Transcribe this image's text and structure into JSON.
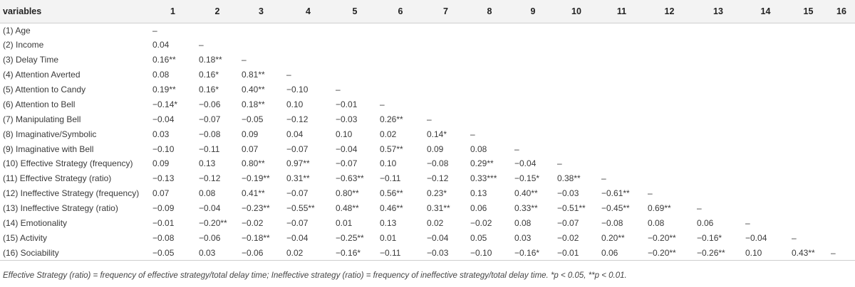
{
  "table": {
    "header": [
      "variables",
      "1",
      "2",
      "3",
      "4",
      "5",
      "6",
      "7",
      "8",
      "9",
      "10",
      "11",
      "12",
      "13",
      "14",
      "15",
      "16"
    ],
    "rows": [
      [
        "(1) Age",
        "–",
        "",
        "",
        "",
        "",
        "",
        "",
        "",
        "",
        "",
        "",
        "",
        "",
        "",
        "",
        ""
      ],
      [
        "(2) Income",
        "0.04",
        "–",
        "",
        "",
        "",
        "",
        "",
        "",
        "",
        "",
        "",
        "",
        "",
        "",
        "",
        ""
      ],
      [
        "(3) Delay Time",
        "0.16**",
        "0.18**",
        "–",
        "",
        "",
        "",
        "",
        "",
        "",
        "",
        "",
        "",
        "",
        "",
        "",
        ""
      ],
      [
        "(4) Attention Averted",
        "0.08",
        "0.16*",
        "0.81**",
        "–",
        "",
        "",
        "",
        "",
        "",
        "",
        "",
        "",
        "",
        "",
        "",
        ""
      ],
      [
        "(5) Attention to Candy",
        "0.19**",
        "0.16*",
        "0.40**",
        "−0.10",
        "–",
        "",
        "",
        "",
        "",
        "",
        "",
        "",
        "",
        "",
        "",
        ""
      ],
      [
        "(6) Attention to Bell",
        "−0.14*",
        "−0.06",
        "0.18**",
        "0.10",
        "−0.01",
        "–",
        "",
        "",
        "",
        "",
        "",
        "",
        "",
        "",
        "",
        ""
      ],
      [
        "(7) Manipulating Bell",
        "−0.04",
        "−0.07",
        "−0.05",
        "−0.12",
        "−0.03",
        "0.26**",
        "–",
        "",
        "",
        "",
        "",
        "",
        "",
        "",
        "",
        ""
      ],
      [
        "(8) Imaginative/Symbolic",
        "0.03",
        "−0.08",
        "0.09",
        "0.04",
        "0.10",
        "0.02",
        "0.14*",
        "–",
        "",
        "",
        "",
        "",
        "",
        "",
        "",
        ""
      ],
      [
        "(9) Imaginative with Bell",
        "−0.10",
        "−0.11",
        "0.07",
        "−0.07",
        "−0.04",
        "0.57**",
        "0.09",
        "0.08",
        "–",
        "",
        "",
        "",
        "",
        "",
        "",
        ""
      ],
      [
        "(10) Effective Strategy (frequency)",
        "0.09",
        "0.13",
        "0.80**",
        "0.97**",
        "−0.07",
        "0.10",
        "−0.08",
        "0.29**",
        "−0.04",
        "–",
        "",
        "",
        "",
        "",
        "",
        ""
      ],
      [
        "(11) Effective Strategy (ratio)",
        "−0.13",
        "−0.12",
        "−0.19**",
        "0.31**",
        "−0.63**",
        "−0.11",
        "−0.12",
        "0.33***",
        "−0.15*",
        "0.38**",
        "–",
        "",
        "",
        "",
        "",
        ""
      ],
      [
        "(12) Ineffective Strategy (frequency)",
        "0.07",
        "0.08",
        "0.41**",
        "−0.07",
        "0.80**",
        "0.56**",
        "0.23*",
        "0.13",
        "0.40**",
        "−0.03",
        "−0.61**",
        "–",
        "",
        "",
        "",
        ""
      ],
      [
        "(13) Ineffective Strategy (ratio)",
        "−0.09",
        "−0.04",
        "−0.23**",
        "−0.55**",
        "0.48**",
        "0.46**",
        "0.31**",
        "0.06",
        "0.33**",
        "−0.51**",
        "−0.45**",
        "0.69**",
        "–",
        "",
        "",
        ""
      ],
      [
        "(14) Emotionality",
        "−0.01",
        "−0.20**",
        "−0.02",
        "−0.07",
        "0.01",
        "0.13",
        "0.02",
        "−0.02",
        "0.08",
        "−0.07",
        "−0.08",
        "0.08",
        "0.06",
        "–",
        "",
        ""
      ],
      [
        "(15) Activity",
        "−0.08",
        "−0.06",
        "−0.18**",
        "−0.04",
        "−0.25**",
        "0.01",
        "−0.04",
        "0.05",
        "0.03",
        "−0.02",
        "0.20**",
        "−0.20**",
        "−0.16*",
        "−0.04",
        "–",
        ""
      ],
      [
        "(16) Sociability",
        "−0.05",
        "0.03",
        "−0.06",
        "0.02",
        "−0.16*",
        "−0.11",
        "−0.03",
        "−0.10",
        "−0.16*",
        "−0.01",
        "0.06",
        "−0.20**",
        "−0.26**",
        "0.10",
        "0.43**",
        "–"
      ]
    ]
  },
  "footnote": "Effective Strategy (ratio) = frequency of effective strategy/total delay time; Ineffective strategy (ratio) = frequency of ineffective strategy/total delay time. *p < 0.05, **p < 0.01."
}
